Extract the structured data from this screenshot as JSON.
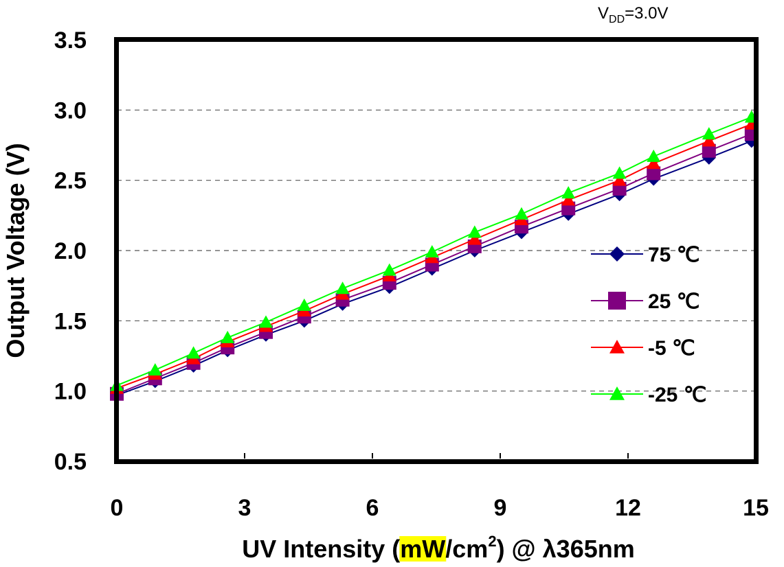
{
  "chart_data": {
    "type": "line",
    "annotation": {
      "prefix": "V",
      "subscript": "DD",
      "suffix": "=3.0V"
    },
    "xlabel": {
      "prefix": "UV Intensity (",
      "highlighted": "mW",
      "unit": "/cm",
      "superscript": "2",
      "suffix": ") @ λ365nm"
    },
    "ylabel": "Output Voltage (V)",
    "xlim": [
      0,
      15
    ],
    "ylim": [
      0.5,
      3.5
    ],
    "x_ticks": [
      "0",
      "3",
      "6",
      "9",
      "12",
      "15"
    ],
    "y_ticks": [
      "0.5",
      "1.0",
      "1.5",
      "2.0",
      "2.5",
      "3.0",
      "3.5"
    ],
    "grid": "horizontal-dashed",
    "legend_placement": "right",
    "highlight_color": "#ffff00",
    "x": [
      0,
      0.9,
      1.8,
      2.6,
      3.5,
      4.4,
      5.3,
      6.4,
      7.4,
      8.4,
      9.5,
      10.6,
      11.8,
      12.6,
      13.9,
      14.9
    ],
    "series": [
      {
        "name": "75 ℃",
        "color": "#000080",
        "marker": "diamond",
        "values": [
          0.97,
          1.07,
          1.18,
          1.29,
          1.4,
          1.5,
          1.62,
          1.74,
          1.87,
          2.0,
          2.13,
          2.26,
          2.4,
          2.51,
          2.66,
          2.78
        ]
      },
      {
        "name": "25 ℃",
        "color": "#800080",
        "marker": "square",
        "values": [
          0.98,
          1.09,
          1.2,
          1.31,
          1.42,
          1.53,
          1.65,
          1.77,
          1.9,
          2.03,
          2.17,
          2.3,
          2.44,
          2.55,
          2.71,
          2.83
        ]
      },
      {
        "name": "-5 ℃",
        "color": "#ff0000",
        "marker": "triangle",
        "values": [
          1.02,
          1.12,
          1.23,
          1.35,
          1.46,
          1.57,
          1.69,
          1.82,
          1.95,
          2.08,
          2.22,
          2.36,
          2.5,
          2.62,
          2.78,
          2.9
        ]
      },
      {
        "name": "-25 ℃",
        "color": "#00ff00",
        "marker": "triangle",
        "values": [
          1.04,
          1.15,
          1.27,
          1.38,
          1.49,
          1.61,
          1.73,
          1.86,
          1.99,
          2.13,
          2.26,
          2.41,
          2.55,
          2.67,
          2.83,
          2.95
        ]
      }
    ]
  }
}
